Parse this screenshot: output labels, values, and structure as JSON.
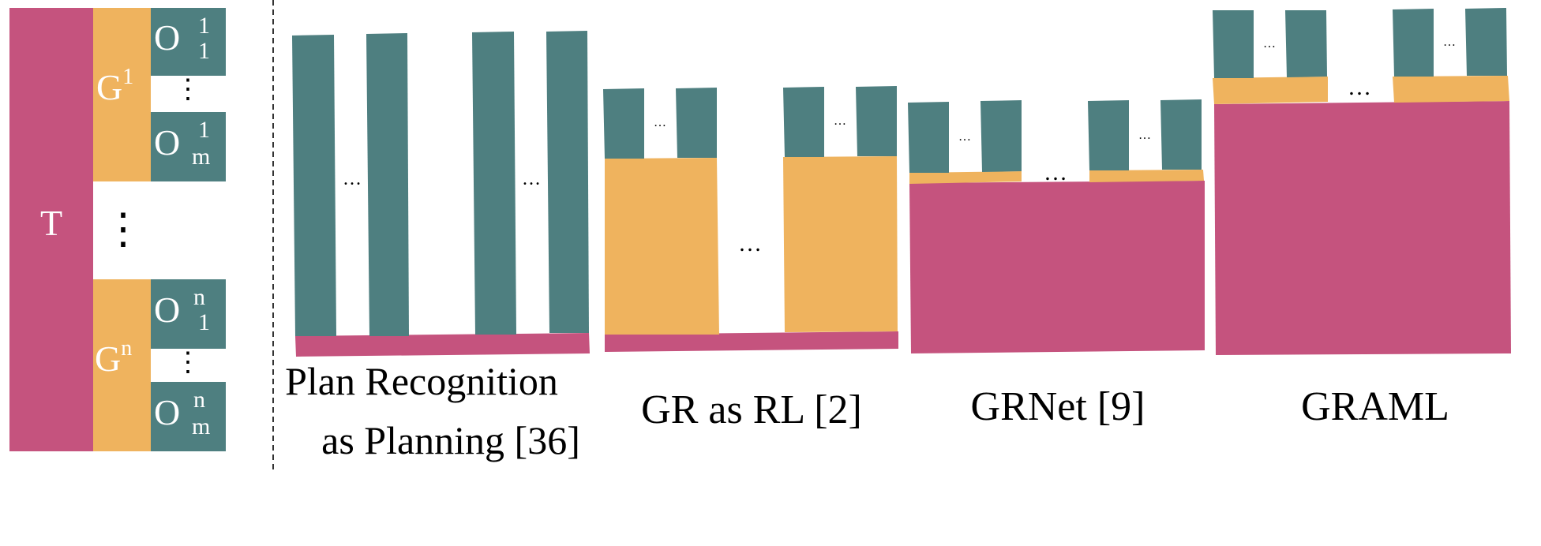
{
  "colors": {
    "task": "#C5537E",
    "goal": "#EFB35E",
    "observation": "#4E7F80",
    "divider": "#333333",
    "text_light": "#ffffff",
    "text_dark": "#000000"
  },
  "legend": {
    "task_label": "T",
    "goal_1": {
      "base": "G",
      "sup": "1"
    },
    "goal_n": {
      "base": "G",
      "sup": "n"
    },
    "obs_1_1": {
      "base": "O",
      "sup": "1",
      "sub": "1"
    },
    "obs_1_m": {
      "base": "O",
      "sup": "1",
      "sub": "m"
    },
    "obs_n_1": {
      "base": "O",
      "sup": "n",
      "sub": "1"
    },
    "obs_n_m": {
      "base": "O",
      "sup": "n",
      "sub": "m"
    },
    "vdots": "⋮"
  },
  "ellipsis": "…",
  "panels": [
    {
      "id": "plan-recognition",
      "label_lines": [
        "Plan Recognition",
        "as Planning [36]"
      ]
    },
    {
      "id": "gr-as-rl",
      "label_lines": [
        "GR as RL [2]"
      ]
    },
    {
      "id": "grnet",
      "label_lines": [
        "GRNet [9]"
      ]
    },
    {
      "id": "graml",
      "label_lines": [
        "GRAML"
      ]
    }
  ]
}
